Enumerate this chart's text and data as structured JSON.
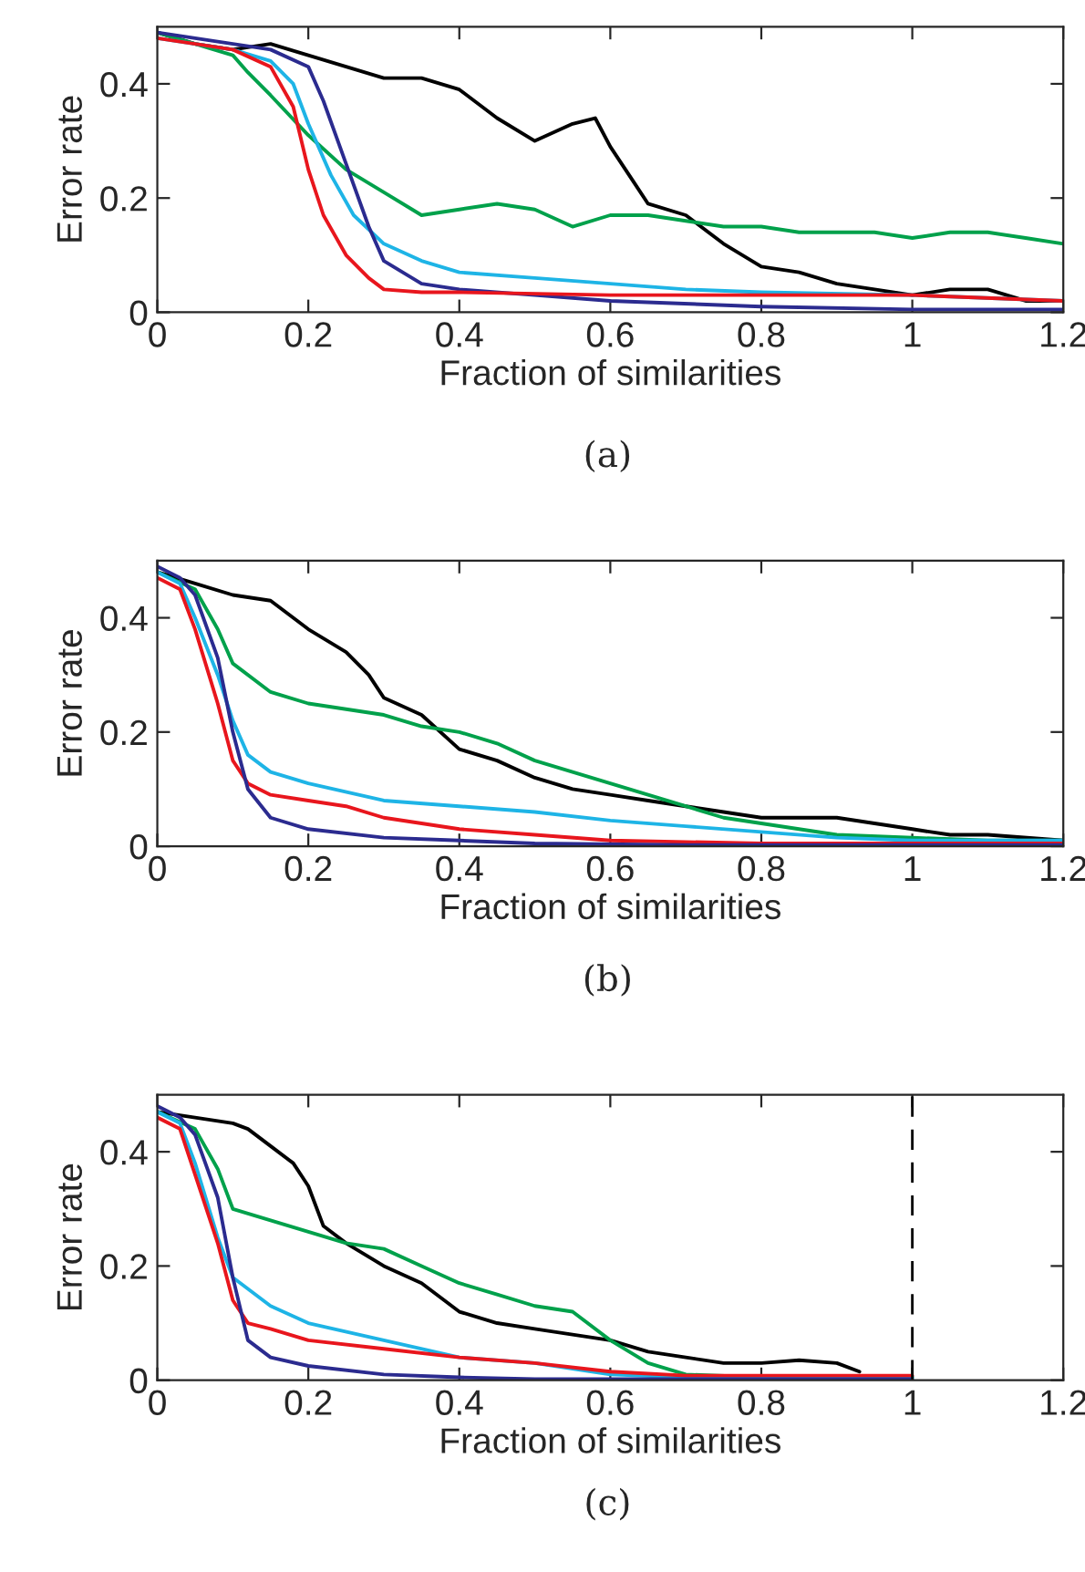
{
  "chart_data": [
    {
      "type": "line",
      "xlabel": "Fraction of similarities",
      "ylabel": "Error rate",
      "annotations": [
        "(a)"
      ],
      "xlim": [
        0,
        1.2
      ],
      "ylim": [
        0,
        0.5
      ],
      "xticks": [
        0,
        0.2,
        0.4,
        0.6,
        0.8,
        1,
        1.2
      ],
      "yticks": [
        0,
        0.2,
        0.4
      ],
      "grid": false,
      "legend": false,
      "series": [
        {
          "color": "#000000",
          "x": [
            0,
            0.05,
            0.1,
            0.15,
            0.2,
            0.25,
            0.3,
            0.35,
            0.4,
            0.45,
            0.5,
            0.55,
            0.58,
            0.6,
            0.63,
            0.65,
            0.7,
            0.75,
            0.8,
            0.85,
            0.9,
            0.95,
            1.0,
            1.05,
            1.1,
            1.15,
            1.2
          ],
          "values": [
            0.49,
            0.47,
            0.46,
            0.47,
            0.45,
            0.43,
            0.41,
            0.41,
            0.39,
            0.34,
            0.3,
            0.33,
            0.34,
            0.29,
            0.23,
            0.19,
            0.17,
            0.12,
            0.08,
            0.07,
            0.05,
            0.04,
            0.03,
            0.04,
            0.04,
            0.02,
            0.02
          ]
        },
        {
          "color": "#00a14b",
          "x": [
            0,
            0.05,
            0.1,
            0.12,
            0.15,
            0.2,
            0.25,
            0.3,
            0.35,
            0.4,
            0.45,
            0.5,
            0.55,
            0.6,
            0.65,
            0.7,
            0.75,
            0.8,
            0.85,
            0.9,
            0.95,
            1.0,
            1.05,
            1.1,
            1.15,
            1.2
          ],
          "values": [
            0.49,
            0.47,
            0.45,
            0.42,
            0.38,
            0.31,
            0.25,
            0.21,
            0.17,
            0.18,
            0.19,
            0.18,
            0.15,
            0.17,
            0.17,
            0.16,
            0.15,
            0.15,
            0.14,
            0.14,
            0.14,
            0.13,
            0.14,
            0.14,
            0.13,
            0.12
          ]
        },
        {
          "color": "#1eb4e6",
          "x": [
            0,
            0.1,
            0.15,
            0.18,
            0.2,
            0.23,
            0.26,
            0.3,
            0.35,
            0.4,
            0.5,
            0.6,
            0.7,
            0.8,
            1.0,
            1.2
          ],
          "values": [
            0.48,
            0.46,
            0.44,
            0.4,
            0.33,
            0.24,
            0.17,
            0.12,
            0.09,
            0.07,
            0.06,
            0.05,
            0.04,
            0.035,
            0.03,
            0.02
          ]
        },
        {
          "color": "#2b2b8f",
          "x": [
            0,
            0.1,
            0.15,
            0.2,
            0.22,
            0.25,
            0.28,
            0.3,
            0.35,
            0.4,
            0.5,
            0.6,
            0.8,
            1.0,
            1.2
          ],
          "values": [
            0.49,
            0.47,
            0.46,
            0.43,
            0.37,
            0.26,
            0.15,
            0.09,
            0.05,
            0.04,
            0.03,
            0.02,
            0.01,
            0.005,
            0.005
          ]
        },
        {
          "color": "#e8161d",
          "x": [
            0,
            0.05,
            0.1,
            0.15,
            0.18,
            0.2,
            0.22,
            0.25,
            0.28,
            0.3,
            0.35,
            0.4,
            0.6,
            0.8,
            1.0,
            1.2
          ],
          "values": [
            0.48,
            0.47,
            0.46,
            0.43,
            0.36,
            0.25,
            0.17,
            0.1,
            0.06,
            0.04,
            0.035,
            0.035,
            0.03,
            0.03,
            0.03,
            0.02
          ]
        }
      ]
    },
    {
      "type": "line",
      "xlabel": "Fraction of similarities",
      "ylabel": "Error rate",
      "annotations": [
        "(b)"
      ],
      "xlim": [
        0,
        1.2
      ],
      "ylim": [
        0,
        0.5
      ],
      "xticks": [
        0,
        0.2,
        0.4,
        0.6,
        0.8,
        1,
        1.2
      ],
      "yticks": [
        0,
        0.2,
        0.4
      ],
      "grid": false,
      "legend": false,
      "series": [
        {
          "color": "#000000",
          "x": [
            0,
            0.05,
            0.1,
            0.15,
            0.18,
            0.2,
            0.25,
            0.28,
            0.3,
            0.35,
            0.4,
            0.45,
            0.5,
            0.55,
            0.6,
            0.65,
            0.7,
            0.75,
            0.8,
            0.85,
            0.9,
            0.95,
            1.0,
            1.05,
            1.1,
            1.2
          ],
          "values": [
            0.48,
            0.46,
            0.44,
            0.43,
            0.4,
            0.38,
            0.34,
            0.3,
            0.26,
            0.23,
            0.17,
            0.15,
            0.12,
            0.1,
            0.09,
            0.08,
            0.07,
            0.06,
            0.05,
            0.05,
            0.05,
            0.04,
            0.03,
            0.02,
            0.02,
            0.01
          ]
        },
        {
          "color": "#00a14b",
          "x": [
            0,
            0.05,
            0.08,
            0.1,
            0.15,
            0.2,
            0.3,
            0.35,
            0.4,
            0.45,
            0.5,
            0.55,
            0.6,
            0.65,
            0.7,
            0.75,
            0.8,
            0.9,
            1.0,
            1.1,
            1.2
          ],
          "values": [
            0.48,
            0.45,
            0.38,
            0.32,
            0.27,
            0.25,
            0.23,
            0.21,
            0.2,
            0.18,
            0.15,
            0.13,
            0.11,
            0.09,
            0.07,
            0.05,
            0.04,
            0.02,
            0.015,
            0.01,
            0.01
          ]
        },
        {
          "color": "#1eb4e6",
          "x": [
            0,
            0.03,
            0.05,
            0.08,
            0.1,
            0.12,
            0.15,
            0.2,
            0.3,
            0.4,
            0.5,
            0.6,
            0.7,
            0.8,
            0.9,
            1.0,
            1.2
          ],
          "values": [
            0.48,
            0.46,
            0.4,
            0.3,
            0.22,
            0.16,
            0.13,
            0.11,
            0.08,
            0.07,
            0.06,
            0.045,
            0.035,
            0.025,
            0.015,
            0.01,
            0.01
          ]
        },
        {
          "color": "#e8161d",
          "x": [
            0,
            0.03,
            0.05,
            0.08,
            0.1,
            0.12,
            0.15,
            0.2,
            0.25,
            0.3,
            0.4,
            0.5,
            0.6,
            0.8,
            1.0,
            1.2
          ],
          "values": [
            0.47,
            0.45,
            0.38,
            0.25,
            0.15,
            0.11,
            0.09,
            0.08,
            0.07,
            0.05,
            0.03,
            0.02,
            0.01,
            0.005,
            0.005,
            0.005
          ]
        },
        {
          "color": "#2b2b8f",
          "x": [
            0,
            0.03,
            0.05,
            0.08,
            0.1,
            0.12,
            0.15,
            0.2,
            0.3,
            0.4,
            0.5,
            0.7,
            1.2
          ],
          "values": [
            0.49,
            0.47,
            0.44,
            0.33,
            0.2,
            0.1,
            0.05,
            0.03,
            0.015,
            0.01,
            0.005,
            0.002,
            0.002
          ]
        }
      ]
    },
    {
      "type": "line",
      "xlabel": "Fraction of similarities",
      "ylabel": "Error rate",
      "annotations": [
        "(c)"
      ],
      "xlim": [
        0,
        1.2
      ],
      "ylim": [
        0,
        0.5
      ],
      "xticks": [
        0,
        0.2,
        0.4,
        0.6,
        0.8,
        1,
        1.2
      ],
      "yticks": [
        0,
        0.2,
        0.4
      ],
      "grid": false,
      "legend": false,
      "ref_lines": [
        {
          "axis": "x",
          "value": 1.0,
          "color": "#000000",
          "line_style": "dashed"
        }
      ],
      "series": [
        {
          "color": "#000000",
          "x": [
            0,
            0.05,
            0.1,
            0.12,
            0.15,
            0.18,
            0.2,
            0.22,
            0.25,
            0.3,
            0.35,
            0.4,
            0.45,
            0.5,
            0.55,
            0.6,
            0.65,
            0.7,
            0.75,
            0.8,
            0.85,
            0.9,
            0.93
          ],
          "values": [
            0.47,
            0.46,
            0.45,
            0.44,
            0.41,
            0.38,
            0.34,
            0.27,
            0.24,
            0.2,
            0.17,
            0.12,
            0.1,
            0.09,
            0.08,
            0.07,
            0.05,
            0.04,
            0.03,
            0.03,
            0.035,
            0.03,
            0.015
          ]
        },
        {
          "color": "#00a14b",
          "x": [
            0,
            0.05,
            0.08,
            0.1,
            0.15,
            0.2,
            0.25,
            0.3,
            0.35,
            0.4,
            0.45,
            0.5,
            0.55,
            0.6,
            0.65,
            0.7,
            0.8,
            1.0
          ],
          "values": [
            0.47,
            0.44,
            0.37,
            0.3,
            0.28,
            0.26,
            0.24,
            0.23,
            0.2,
            0.17,
            0.15,
            0.13,
            0.12,
            0.07,
            0.03,
            0.01,
            0.005,
            0.005
          ]
        },
        {
          "color": "#1eb4e6",
          "x": [
            0,
            0.03,
            0.05,
            0.08,
            0.1,
            0.15,
            0.2,
            0.3,
            0.4,
            0.5,
            0.6,
            0.7,
            1.0
          ],
          "values": [
            0.47,
            0.45,
            0.38,
            0.25,
            0.18,
            0.13,
            0.1,
            0.07,
            0.04,
            0.03,
            0.01,
            0.005,
            0.005
          ]
        },
        {
          "color": "#e8161d",
          "x": [
            0,
            0.03,
            0.05,
            0.08,
            0.1,
            0.12,
            0.15,
            0.2,
            0.3,
            0.4,
            0.5,
            0.6,
            0.7,
            1.0
          ],
          "values": [
            0.46,
            0.44,
            0.36,
            0.24,
            0.14,
            0.1,
            0.09,
            0.07,
            0.055,
            0.04,
            0.03,
            0.015,
            0.008,
            0.008
          ]
        },
        {
          "color": "#2b2b8f",
          "x": [
            0,
            0.03,
            0.05,
            0.08,
            0.1,
            0.12,
            0.15,
            0.2,
            0.3,
            0.4,
            0.5,
            1.0
          ],
          "values": [
            0.48,
            0.46,
            0.43,
            0.32,
            0.18,
            0.07,
            0.04,
            0.025,
            0.01,
            0.005,
            0.002,
            0.002
          ]
        }
      ]
    }
  ]
}
